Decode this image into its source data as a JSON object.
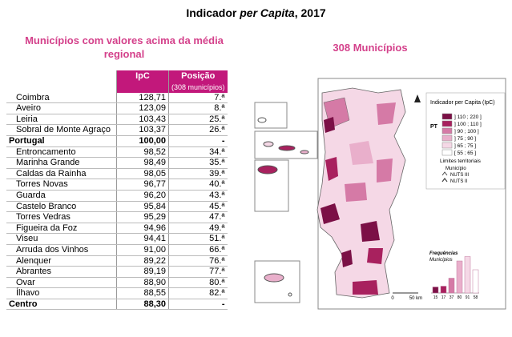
{
  "title": {
    "before": "Indicador ",
    "italic": "per Capita",
    "after": ", 2017"
  },
  "table_heading": "Municípios com valores acima da média regional",
  "table": {
    "header": {
      "ipc": "IpC",
      "position": "Posição",
      "position_note": "(308 municípios)"
    },
    "rows": [
      {
        "cells": [
          "Coimbra",
          "128,71",
          "7.ª"
        ]
      },
      {
        "cells": [
          "Aveiro",
          "123,09",
          "8.ª"
        ]
      },
      {
        "cells": [
          "Leiria",
          "103,43",
          "25.ª"
        ]
      },
      {
        "cells": [
          "Sobral de Monte Agraço",
          "103,37",
          "26.ª"
        ]
      },
      {
        "cells": [
          "Portugal",
          "100,00",
          "-"
        ],
        "bold": true
      },
      {
        "cells": [
          "Entroncamento",
          "98,52",
          "34.ª"
        ]
      },
      {
        "cells": [
          "Marinha Grande",
          "98,49",
          "35.ª"
        ]
      },
      {
        "cells": [
          "Caldas da Rainha",
          "98,05",
          "39.ª"
        ]
      },
      {
        "cells": [
          "Torres Novas",
          "96,77",
          "40.ª"
        ]
      },
      {
        "cells": [
          "Guarda",
          "96,20",
          "43.ª"
        ]
      },
      {
        "cells": [
          "Castelo Branco",
          "95,84",
          "45.ª"
        ]
      },
      {
        "cells": [
          "Torres Vedras",
          "95,29",
          "47.ª"
        ]
      },
      {
        "cells": [
          "Figueira da Foz",
          "94,96",
          "49.ª"
        ]
      },
      {
        "cells": [
          "Viseu",
          "94,41",
          "51.ª"
        ]
      },
      {
        "cells": [
          "Arruda dos Vinhos",
          "91,00",
          "66.ª"
        ]
      },
      {
        "cells": [
          "Alenquer",
          "89,22",
          "76.ª"
        ]
      },
      {
        "cells": [
          "Abrantes",
          "89,19",
          "77.ª"
        ]
      },
      {
        "cells": [
          "Ovar",
          "88,90",
          "80.ª"
        ]
      },
      {
        "cells": [
          "Ílhavo",
          "88,55",
          "82.ª"
        ]
      },
      {
        "cells": [
          "Centro",
          "88,30",
          "-"
        ],
        "bold": true
      }
    ]
  },
  "map": {
    "title": "308 Municípios",
    "legend": {
      "title": "Indicador per Capita (IpC)",
      "pt_label": "PT",
      "classes": [
        {
          "label": "] 110 ; 220 ]",
          "color": "#7b1046"
        },
        {
          "label": "] 100 ; 110 ]",
          "color": "#a8215e"
        },
        {
          "label": "] 90 ; 100 ]",
          "color": "#d57aa6"
        },
        {
          "label": "] 75 ; 90 ]",
          "color": "#e9afcb"
        },
        {
          "label": "] 65 ; 75 ]",
          "color": "#f5d8e6"
        },
        {
          "label": "[ 55 ; 65 ]",
          "color": "#ffffff"
        }
      ],
      "limits_title": "Limites territoriais",
      "limits": [
        "Município",
        "NUTS III",
        "NUTS II"
      ]
    },
    "histogram": {
      "title": "Frequências",
      "subtitle": "Municípios",
      "values": [
        15,
        17,
        37,
        80,
        91,
        58
      ]
    },
    "scale": {
      "start": "0",
      "end": "50 km"
    }
  }
}
